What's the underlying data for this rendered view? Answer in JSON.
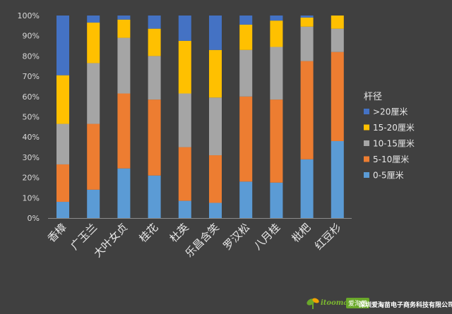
{
  "chart_data": {
    "type": "bar",
    "stacked": true,
    "percent": true,
    "categories": [
      "香樟",
      "广玉兰",
      "大叶女贞",
      "桂花",
      "杜英",
      "乐昌含笑",
      "罗汉松",
      "八月桂",
      "枇杷",
      "红豆杉"
    ],
    "series": [
      {
        "name": "0-5厘米",
        "color": "#5b9bd5",
        "values": [
          8,
          14,
          24.5,
          21,
          8.5,
          7.5,
          18,
          17.5,
          29,
          38
        ]
      },
      {
        "name": "5-10厘米",
        "color": "#ed7d31",
        "values": [
          18.5,
          32.5,
          37,
          37.5,
          26.5,
          23.5,
          42,
          41,
          48.5,
          44
        ]
      },
      {
        "name": "10-15厘米",
        "color": "#a5a5a5",
        "values": [
          20,
          30,
          27.5,
          21.5,
          26.5,
          28.5,
          23,
          26,
          17,
          11.5
        ]
      },
      {
        "name": "15-20厘米",
        "color": "#ffc000",
        "values": [
          24,
          20,
          9,
          13.5,
          26,
          23.5,
          12.5,
          13,
          4.5,
          6.5
        ]
      },
      {
        "name": ">20厘米",
        "color": "#4472c4",
        "values": [
          29.5,
          3.5,
          2,
          6.5,
          12.5,
          17,
          4.5,
          2.5,
          1,
          0
        ]
      }
    ],
    "y_ticks": [
      "0%",
      "10%",
      "20%",
      "30%",
      "40%",
      "50%",
      "60%",
      "70%",
      "80%",
      "90%",
      "100%"
    ],
    "ylim": [
      0,
      100
    ],
    "grid": false,
    "legend": {
      "title": "杆径",
      "position": "right",
      "order": [
        ">20厘米",
        "15-20厘米",
        "10-15厘米",
        "5-10厘米",
        "0-5厘米"
      ]
    }
  },
  "watermark": {
    "logo_text": "itoomaoe",
    "logo_tag": "爱淘苗",
    "company": "深圳爱淘苗电子商务科技有限公司"
  }
}
